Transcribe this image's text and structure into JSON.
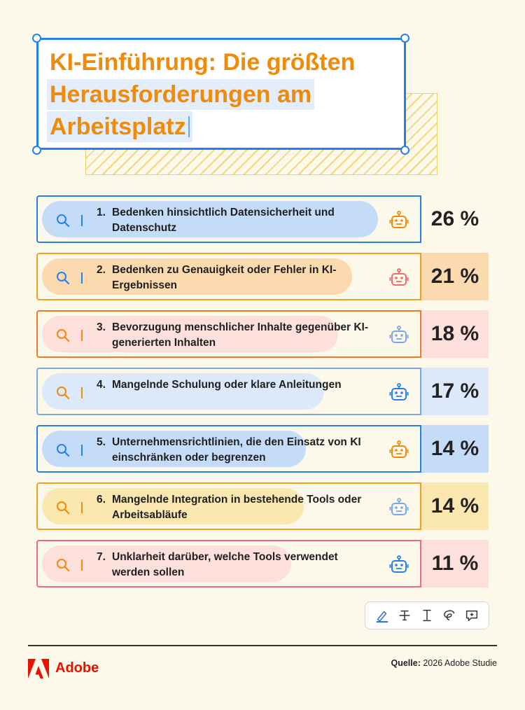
{
  "title": {
    "line1": "KI-Einführung: Die größten",
    "line2": "Herausforderungen am",
    "line3": "Arbeitsplatz"
  },
  "chart_data": {
    "type": "table",
    "title": "KI-Einführung: Die größten Herausforderungen am Arbeitsplatz",
    "unit": "%",
    "rows": [
      {
        "rank": "1.",
        "label": "Bedenken hinsichtlich Datensicherheit und Datenschutz",
        "value": 26,
        "display": "26 %",
        "border": "#2680eb",
        "pill": "#c4dcf7",
        "pct_bg": "#fdf9ea",
        "accent": "#2680eb",
        "bot": "#f08a0a"
      },
      {
        "rank": "2.",
        "label": "Bedenken zu Genauigkeit oder Fehler in KI-Ergebnissen",
        "value": 21,
        "display": "21 %",
        "border": "#f0a020",
        "pill": "#fbdab0",
        "pct_bg": "#fbdab0",
        "accent": "#2680eb",
        "bot": "#ef6b6b"
      },
      {
        "rank": "3.",
        "label": "Bevorzugung menschlicher Inhalte gegenüber KI-generierten Inhalten",
        "value": 18,
        "display": "18 %",
        "border": "#f07a2a",
        "pill": "#fde0dc",
        "pct_bg": "#fde0dc",
        "accent": "#f08a0a",
        "bot": "#7aa7e8"
      },
      {
        "rank": "4.",
        "label": "Mangelnde Schulung oder klare Anleitungen",
        "value": 17,
        "display": "17 %",
        "border": "#7aa7e8",
        "pill": "#dbe9fa",
        "pct_bg": "#dbe9fa",
        "accent": "#f08a0a",
        "bot": "#2680eb"
      },
      {
        "rank": "5.",
        "label": "Unternehmensrichtlinien, die den Einsatz von KI einschränken oder begrenzen",
        "value": 14,
        "display": "14 %",
        "border": "#2680eb",
        "pill": "#c4dcf7",
        "pct_bg": "#c4dcf7",
        "accent": "#2680eb",
        "bot": "#f08a0a"
      },
      {
        "rank": "6.",
        "label": "Mangelnde Integration in bestehende Tools oder Arbeitsabläufe",
        "value": 14,
        "display": "14 %",
        "border": "#f0a020",
        "pill": "#fbe7b0",
        "pct_bg": "#fbe7b0",
        "accent": "#f08a0a",
        "bot": "#7aa7e8"
      },
      {
        "rank": "7.",
        "label": "Unklarheit darüber, welche Tools verwendet werden sollen",
        "value": 11,
        "display": "11 %",
        "border": "#ef6b7a",
        "pill": "#fde0dc",
        "pct_bg": "#fde0dc",
        "accent": "#f08a0a",
        "bot": "#2680eb"
      }
    ]
  },
  "toolbar": {
    "icons": [
      "pen-icon",
      "strikethrough-icon",
      "text-cursor-icon",
      "lasso-icon",
      "comment-add-icon"
    ]
  },
  "footer": {
    "brand": "Adobe",
    "source_label": "Quelle:",
    "source_text": "2026 Adobe Studie",
    "brand_color": "#eb1000"
  }
}
